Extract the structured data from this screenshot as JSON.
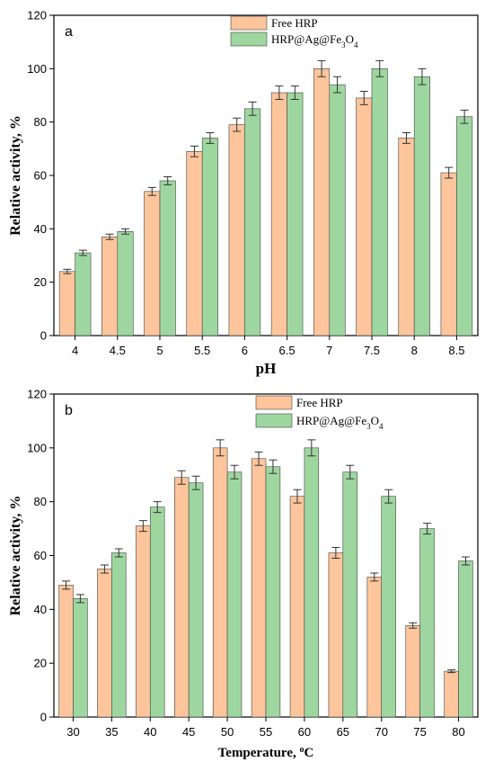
{
  "colors": {
    "free": "#fcc59c",
    "hrp": "#9ed6a0"
  },
  "chart_data": [
    {
      "type": "bar",
      "panel_label": "a",
      "xlabel": "pH",
      "ylabel": "Relative activity, %",
      "ylim": [
        0,
        120
      ],
      "yticks": [
        0,
        20,
        40,
        60,
        80,
        100,
        120
      ],
      "categories": [
        "4",
        "4.5",
        "5",
        "5.5",
        "6",
        "6.5",
        "7",
        "7.5",
        "8",
        "8.5"
      ],
      "legend": {
        "placement": "top-center"
      },
      "series": [
        {
          "name": "Free HRP",
          "color": "#fcc59c",
          "values": [
            24,
            37,
            54,
            69,
            79,
            91,
            100,
            89,
            74,
            61
          ],
          "errors": [
            0.8,
            1,
            1.5,
            2,
            2.5,
            2.5,
            3,
            2.5,
            2,
            2
          ]
        },
        {
          "name_prefix": "HRP@Ag@Fe",
          "name_sub1": "3",
          "name_mid": "O",
          "name_sub2": "4",
          "color": "#9ed6a0",
          "values": [
            31,
            39,
            58,
            74,
            85,
            91,
            94,
            100,
            97,
            82
          ],
          "errors": [
            1,
            1,
            1.5,
            2,
            2.5,
            2.5,
            3,
            3,
            3,
            2.5
          ]
        }
      ]
    },
    {
      "type": "bar",
      "panel_label": "b",
      "xlabel_main": "Temperature, ",
      "xlabel_sup": "o",
      "xlabel_unit": "C",
      "ylabel": "Relative activity, %",
      "ylim": [
        0,
        120
      ],
      "yticks": [
        0,
        20,
        40,
        60,
        80,
        100,
        120
      ],
      "categories": [
        "30",
        "35",
        "40",
        "45",
        "50",
        "55",
        "60",
        "65",
        "70",
        "75",
        "80"
      ],
      "legend": {
        "placement": "top-center"
      },
      "series": [
        {
          "name": "Free HRP",
          "color": "#fcc59c",
          "values": [
            49,
            55,
            71,
            89,
            100,
            96,
            82,
            61,
            52,
            34,
            17
          ],
          "errors": [
            1.5,
            1.5,
            2,
            2.5,
            3,
            2.5,
            2.5,
            2,
            1.5,
            1,
            0.5
          ]
        },
        {
          "name_prefix": "HRP@Ag@Fe",
          "name_sub1": "3",
          "name_mid": "O",
          "name_sub2": "4",
          "color": "#9ed6a0",
          "values": [
            44,
            61,
            78,
            87,
            91,
            93,
            100,
            91,
            82,
            70,
            58
          ],
          "errors": [
            1.5,
            1.5,
            2,
            2.5,
            2.5,
            2.5,
            3,
            2.5,
            2.5,
            2,
            1.5
          ]
        }
      ]
    }
  ]
}
